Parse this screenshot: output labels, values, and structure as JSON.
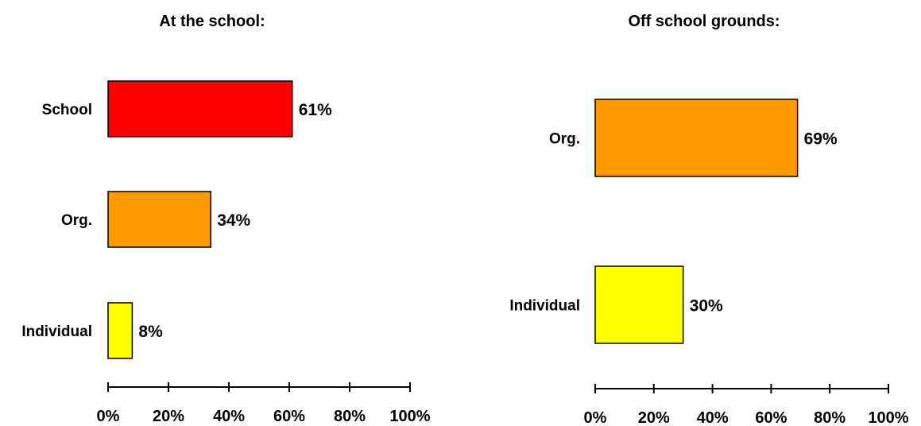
{
  "chart_data": [
    {
      "type": "bar",
      "orientation": "horizontal",
      "title": "At the school:",
      "categories": [
        "School",
        "Org.",
        "Individual"
      ],
      "values": [
        61,
        34,
        8
      ],
      "value_labels": [
        "61%",
        "34%",
        "8%"
      ],
      "colors": [
        "#ff0000",
        "#ff9900",
        "#ffff00"
      ],
      "xlim": [
        0,
        100
      ],
      "xticks": [
        "0%",
        "20%",
        "40%",
        "60%",
        "80%",
        "100%"
      ],
      "grid": false,
      "legend": "none"
    },
    {
      "type": "bar",
      "orientation": "horizontal",
      "title": "Off school grounds:",
      "categories": [
        "Org.",
        "Individual"
      ],
      "values": [
        69,
        30
      ],
      "value_labels": [
        "69%",
        "30%"
      ],
      "colors": [
        "#ff9900",
        "#ffff00"
      ],
      "xlim": [
        0,
        100
      ],
      "xticks": [
        "0%",
        "20%",
        "40%",
        "60%",
        "80%",
        "100%"
      ],
      "grid": false,
      "legend": "none"
    }
  ]
}
